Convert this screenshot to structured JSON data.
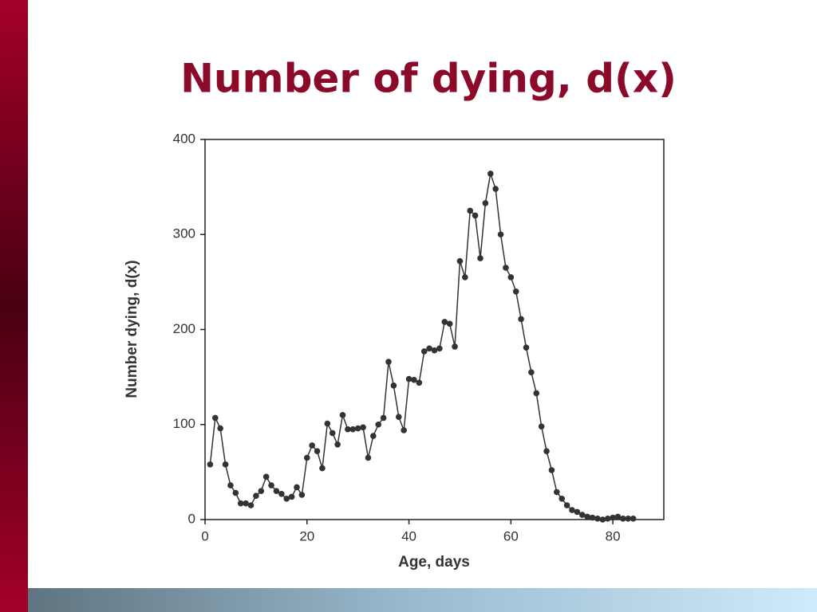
{
  "chart_data": {
    "type": "line",
    "title": "Number of dying, d(x)",
    "x_label": "Age, days",
    "y_label": "Number dying, d(x)",
    "x": [
      1,
      2,
      3,
      4,
      5,
      6,
      7,
      8,
      9,
      10,
      11,
      12,
      13,
      14,
      15,
      16,
      17,
      18,
      19,
      20,
      21,
      22,
      23,
      24,
      25,
      26,
      27,
      28,
      29,
      30,
      31,
      32,
      33,
      34,
      35,
      36,
      37,
      38,
      39,
      40,
      41,
      42,
      43,
      44,
      45,
      46,
      47,
      48,
      49,
      50,
      51,
      52,
      53,
      54,
      55,
      56,
      57,
      58,
      59,
      60,
      61,
      62,
      63,
      64,
      65,
      66,
      67,
      68,
      69,
      70,
      71,
      72,
      73,
      74,
      75,
      76,
      77,
      78,
      79,
      80,
      81,
      82,
      83,
      84
    ],
    "values": [
      58,
      107,
      96,
      58,
      36,
      28,
      17,
      17,
      15,
      25,
      30,
      45,
      36,
      30,
      27,
      22,
      24,
      34,
      26,
      65,
      78,
      72,
      54,
      101,
      91,
      79,
      110,
      95,
      95,
      96,
      97,
      65,
      88,
      100,
      107,
      166,
      141,
      108,
      94,
      148,
      147,
      144,
      177,
      180,
      178,
      180,
      208,
      206,
      182,
      272,
      255,
      325,
      320,
      275,
      333,
      364,
      348,
      300,
      265,
      255,
      240,
      211,
      181,
      155,
      133,
      98,
      72,
      52,
      29,
      22,
      15,
      10,
      8,
      5,
      3,
      2,
      1,
      0,
      1,
      2,
      3,
      1,
      1,
      1
    ],
    "color": "#333333",
    "xlim": [
      0,
      90
    ],
    "xticks": [
      0,
      20,
      40,
      60,
      80
    ],
    "ylim": [
      0,
      400
    ],
    "yticks": [
      0,
      100,
      200,
      300,
      400
    ]
  }
}
